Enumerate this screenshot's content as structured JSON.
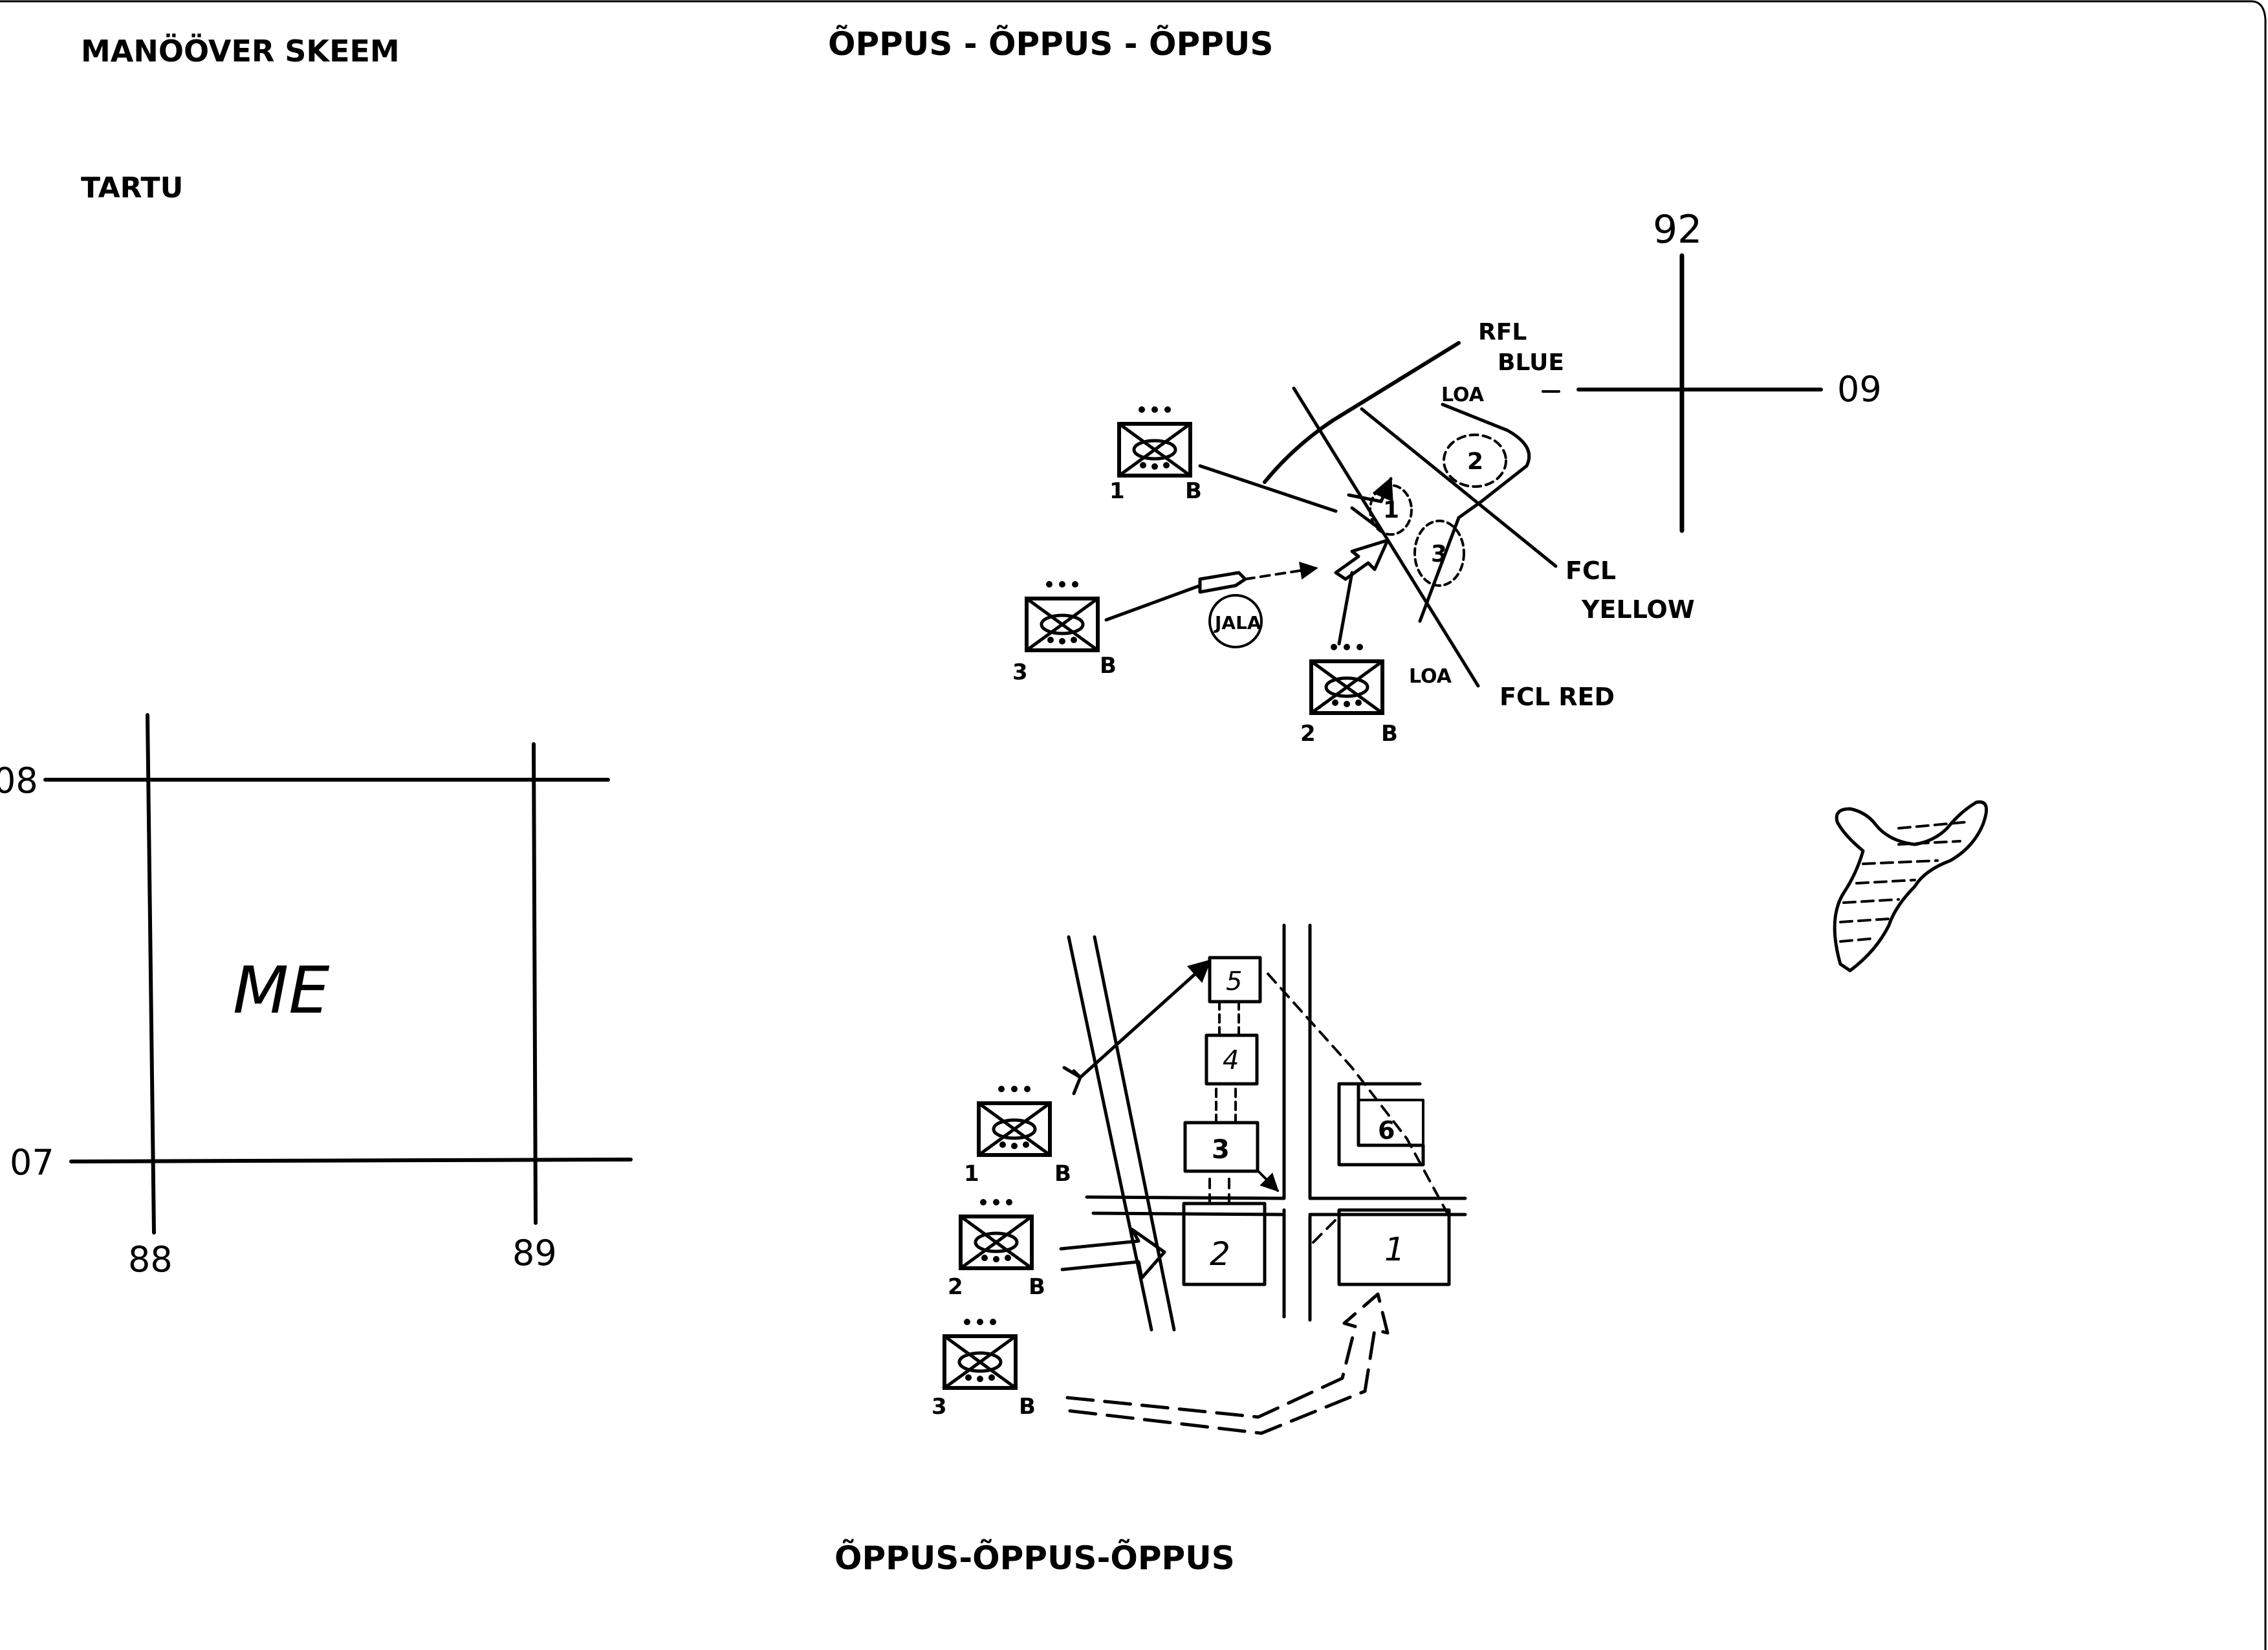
{
  "header": {
    "title": "MANÖÖVER SKEEM",
    "exercise_top": "ÕPPUS - ÕPPUS - ÕPPUS",
    "location": "TARTU"
  },
  "footer": {
    "exercise_bottom": "ÕPPUS-ÕPPUS-ÕPPUS"
  },
  "grid_square": {
    "label": "ME",
    "north_top": "08",
    "north_bottom": "07",
    "east_left": "88",
    "east_right": "89"
  },
  "grid_cross": {
    "north": "92",
    "east": "09"
  },
  "top_scheme": {
    "units": [
      {
        "left": "1",
        "right": "B"
      },
      {
        "left": "3",
        "right": "B"
      },
      {
        "left": "2",
        "right": "B"
      }
    ],
    "objectives": [
      "1",
      "2",
      "3"
    ],
    "jala": "JALA",
    "lines": {
      "rfl_1": "RFL",
      "rfl_2": "BLUE",
      "loa_top": "LOA",
      "loa_bottom": "LOA",
      "fcl_yellow_1": "FCL",
      "fcl_yellow_2": "YELLOW",
      "fcl_red": "FCL RED"
    }
  },
  "bottom_scheme": {
    "units": [
      {
        "left": "1",
        "right": "B"
      },
      {
        "left": "2",
        "right": "B"
      },
      {
        "left": "3",
        "right": "B"
      }
    ],
    "buildings": [
      "1",
      "2",
      "3",
      "4",
      "5",
      "6"
    ]
  }
}
